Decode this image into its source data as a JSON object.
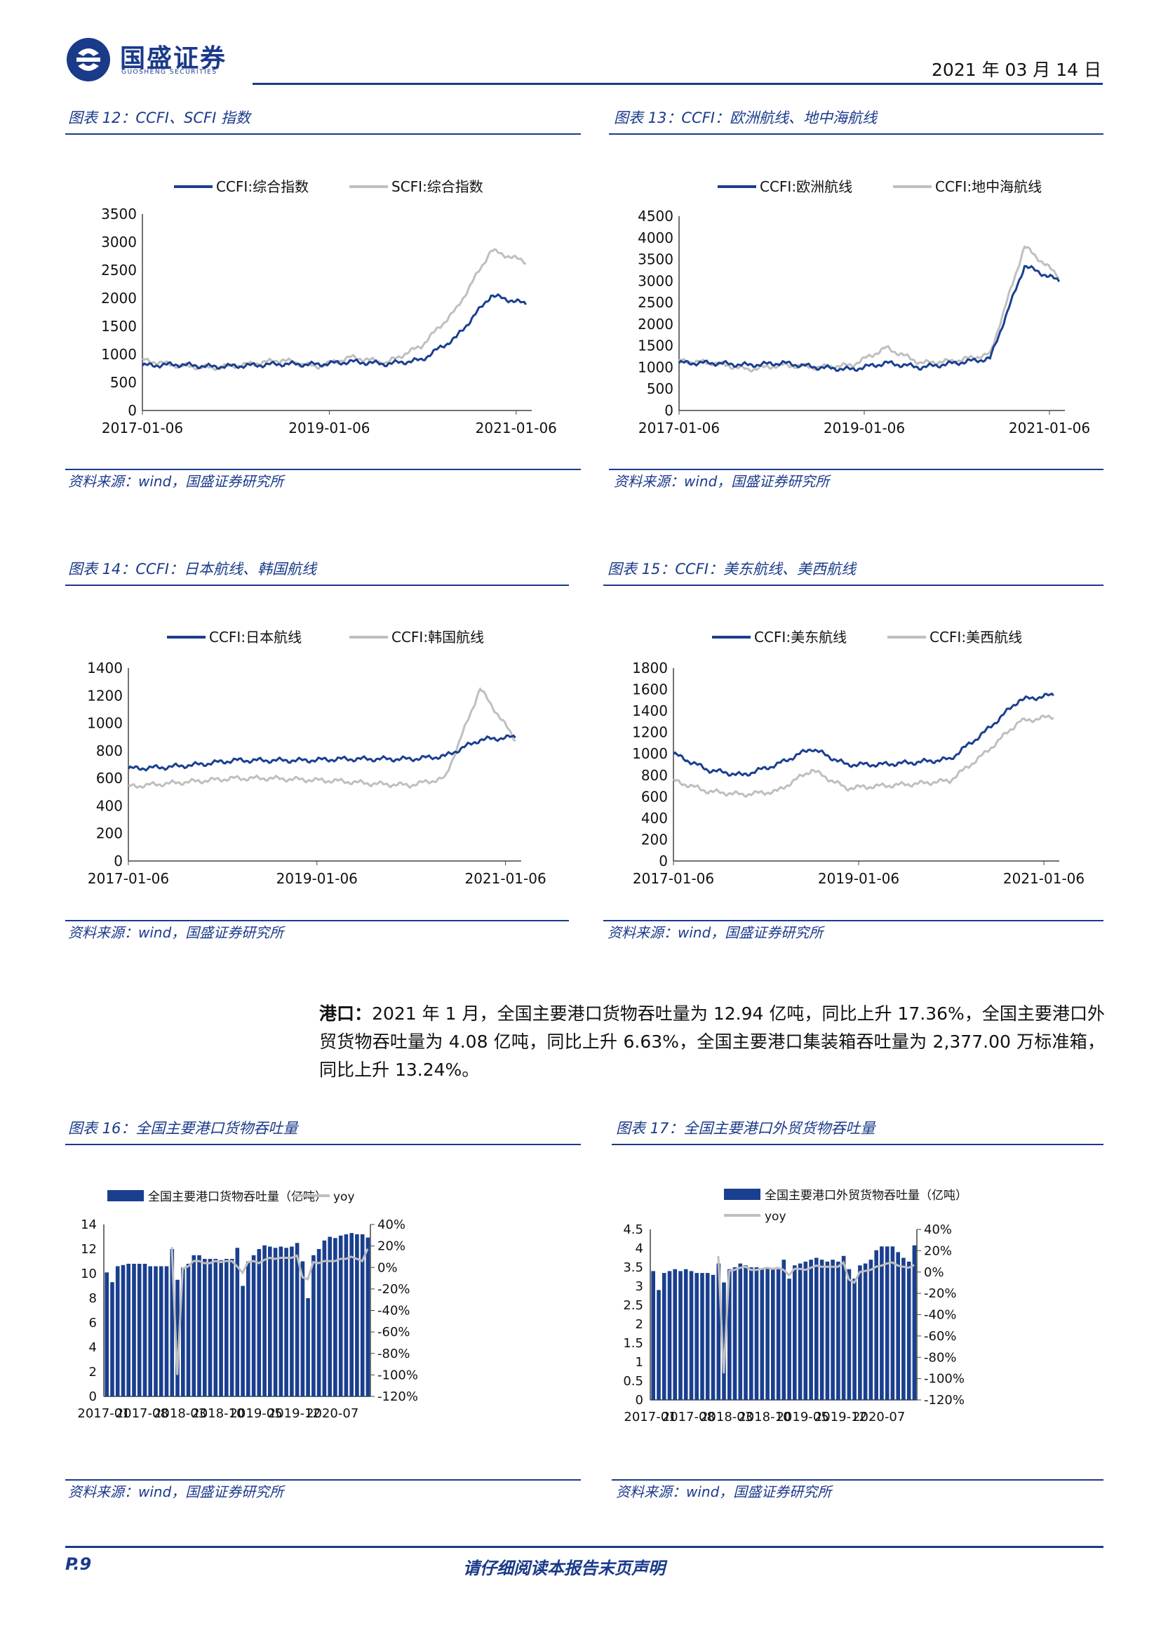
{
  "header": {
    "logo_cn": "国盛证券",
    "logo_en": "GUOSHENG SECURITIES",
    "date": "2021 年 03 月 14 日"
  },
  "figures": [
    {
      "title": "图表 12：CCFI、SCFI 指数",
      "source": "资料来源：wind，国盛证券研究所",
      "legend": [
        "CCFI:综合指数",
        "SCFI:综合指数"
      ],
      "colors": [
        "#1a3f8f",
        "#bfbfbf"
      ],
      "yticks": [
        "3500",
        "3000",
        "2500",
        "2000",
        "1500",
        "1000",
        "500",
        "0"
      ],
      "ymax": 3500,
      "xticks": [
        "2017-01-06",
        "2019-01-06",
        "2021-01-06"
      ]
    },
    {
      "title": "图表 13：CCFI：欧洲航线、地中海航线",
      "source": "资料来源：wind，国盛证券研究所",
      "legend": [
        "CCFI:欧洲航线",
        "CCFI:地中海航线"
      ],
      "colors": [
        "#1a3f8f",
        "#bfbfbf"
      ],
      "yticks": [
        "4500",
        "4000",
        "3500",
        "3000",
        "2500",
        "2000",
        "1500",
        "1000",
        "500",
        "0"
      ],
      "ymax": 4500,
      "xticks": [
        "2017-01-06",
        "2019-01-06",
        "2021-01-06"
      ]
    },
    {
      "title": "图表 14：CCFI：日本航线、韩国航线",
      "source": "资料来源：wind，国盛证券研究所",
      "legend": [
        "CCFI:日本航线",
        "CCFI:韩国航线"
      ],
      "colors": [
        "#1a3f8f",
        "#bfbfbf"
      ],
      "yticks": [
        "1400",
        "1200",
        "1000",
        "800",
        "600",
        "400",
        "200",
        "0"
      ],
      "ymax": 1400,
      "xticks": [
        "2017-01-06",
        "2019-01-06",
        "2021-01-06"
      ]
    },
    {
      "title": "图表 15：CCFI：美东航线、美西航线",
      "source": "资料来源：wind，国盛证券研究所",
      "legend": [
        "CCFI:美东航线",
        "CCFI:美西航线"
      ],
      "colors": [
        "#1a3f8f",
        "#bfbfbf"
      ],
      "yticks": [
        "1800",
        "1600",
        "1400",
        "1200",
        "1000",
        "800",
        "600",
        "400",
        "200",
        "0"
      ],
      "ymax": 1800,
      "xticks": [
        "2017-01-06",
        "2019-01-06",
        "2021-01-06"
      ]
    },
    {
      "title": "图表 16：全国主要港口货物吞吐量",
      "source": "资料来源：wind，国盛证券研究所",
      "legend": [
        "全国主要港口货物吞吐量（亿吨）",
        "yoy"
      ],
      "colors": [
        "#1a3f8f",
        "#bfbfbf"
      ],
      "yticks": [
        "14",
        "12",
        "10",
        "8",
        "6",
        "4",
        "2",
        "0"
      ],
      "ymax": 14,
      "y2ticks": [
        "40%",
        "20%",
        "0%",
        "-20%",
        "-40%",
        "-60%",
        "-80%",
        "-100%",
        "-120%"
      ],
      "xticks": [
        "2017-01",
        "2017-08",
        "2018-03",
        "2018-10",
        "2019-05",
        "2019-12",
        "2020-07"
      ]
    },
    {
      "title": "图表 17：全国主要港口外贸货物吞吐量",
      "source": "资料来源：wind，国盛证券研究所",
      "legend": [
        "全国主要港口外贸货物吞吐量（亿吨）",
        "yoy"
      ],
      "colors": [
        "#1a3f8f",
        "#bfbfbf"
      ],
      "yticks": [
        "4.5",
        "4",
        "3.5",
        "3",
        "2.5",
        "2",
        "1.5",
        "1",
        "0.5",
        "0"
      ],
      "ymax": 4.5,
      "y2ticks": [
        "40%",
        "20%",
        "0%",
        "-20%",
        "-40%",
        "-60%",
        "-80%",
        "-100%",
        "-120%"
      ],
      "xticks": [
        "2017-01",
        "2017-08",
        "2018-03",
        "2018-10",
        "2019-05",
        "2019-12",
        "2020-07"
      ]
    }
  ],
  "paragraph": {
    "lead": "港口：",
    "text": "2021 年 1 月，全国主要港口货物吞吐量为 12.94 亿吨，同比上升 17.36%，全国主要港口外贸货物吞吐量为 4.08 亿吨，同比上升 6.63%，全国主要港口集装箱吞吐量为 2,377.00 万标准箱，同比上升 13.24%。"
  },
  "footer": {
    "page": "P.9",
    "disclaimer": "请仔细阅读本报告末页声明"
  },
  "chart_data": [
    {
      "type": "line",
      "title": "图表 12：CCFI、SCFI 指数",
      "x": [
        "2017-01",
        "2017-07",
        "2018-01",
        "2018-07",
        "2019-01",
        "2019-07",
        "2020-01",
        "2020-04",
        "2020-07",
        "2020-10",
        "2021-01",
        "2021-03"
      ],
      "series": [
        {
          "name": "CCFI:综合指数",
          "values": [
            800,
            820,
            780,
            800,
            830,
            820,
            870,
            830,
            900,
            1300,
            2050,
            1900
          ]
        },
        {
          "name": "SCFI:综合指数",
          "values": [
            900,
            800,
            760,
            820,
            900,
            780,
            950,
            850,
            1150,
            1800,
            2850,
            2650
          ]
        }
      ],
      "ylim": [
        0,
        3500
      ]
    },
    {
      "type": "line",
      "title": "图表 13：CCFI：欧洲航线、地中海航线",
      "x": [
        "2017-01",
        "2017-07",
        "2018-01",
        "2018-07",
        "2019-01",
        "2019-07",
        "2020-01",
        "2020-04",
        "2020-07",
        "2020-10",
        "2021-01",
        "2021-03"
      ],
      "series": [
        {
          "name": "CCFI:欧洲航线",
          "values": [
            1100,
            1100,
            1050,
            1100,
            1000,
            950,
            1100,
            1000,
            1100,
            1200,
            3350,
            3000
          ]
        },
        {
          "name": "CCFI:地中海航线",
          "values": [
            1150,
            1100,
            950,
            1050,
            1000,
            1050,
            1450,
            1100,
            1150,
            1300,
            3800,
            3100
          ]
        }
      ],
      "ylim": [
        0,
        4500
      ]
    },
    {
      "type": "line",
      "title": "图表 14：CCFI：日本航线、韩国航线",
      "x": [
        "2017-01",
        "2017-07",
        "2018-01",
        "2018-07",
        "2019-01",
        "2019-07",
        "2020-01",
        "2020-04",
        "2020-07",
        "2020-10",
        "2021-01",
        "2021-02"
      ],
      "series": [
        {
          "name": "CCFI:日本航线",
          "values": [
            670,
            680,
            700,
            730,
            730,
            730,
            740,
            740,
            740,
            760,
            880,
            900
          ]
        },
        {
          "name": "CCFI:韩国航线",
          "values": [
            540,
            560,
            580,
            600,
            600,
            590,
            580,
            560,
            550,
            600,
            1250,
            880
          ]
        }
      ],
      "ylim": [
        0,
        1400
      ]
    },
    {
      "type": "line",
      "title": "图表 15：CCFI：美东航线、美西航线",
      "x": [
        "2017-01",
        "2017-07",
        "2018-01",
        "2018-07",
        "2019-01",
        "2019-07",
        "2020-01",
        "2020-04",
        "2020-07",
        "2020-10",
        "2021-01",
        "2021-02"
      ],
      "series": [
        {
          "name": "CCFI:美东航线",
          "values": [
            1000,
            850,
            800,
            900,
            1050,
            900,
            900,
            920,
            950,
            1200,
            1500,
            1550
          ]
        },
        {
          "name": "CCFI:美西航线",
          "values": [
            750,
            650,
            620,
            650,
            850,
            680,
            700,
            720,
            750,
            1000,
            1300,
            1350
          ]
        }
      ],
      "ylim": [
        0,
        1800
      ]
    },
    {
      "type": "bar",
      "title": "图表 16：全国主要港口货物吞吐量",
      "categories": [
        "2017-01",
        "2017-02",
        "2017-03",
        "2017-04",
        "2017-05",
        "2017-06",
        "2017-07",
        "2017-08",
        "2017-09",
        "2017-10",
        "2017-11",
        "2017-12",
        "2018-01",
        "2018-02",
        "2018-03",
        "2018-04",
        "2018-05",
        "2018-06",
        "2018-07",
        "2018-08",
        "2018-09",
        "2018-10",
        "2018-11",
        "2018-12",
        "2019-01",
        "2019-02",
        "2019-03",
        "2019-04",
        "2019-05",
        "2019-06",
        "2019-07",
        "2019-08",
        "2019-09",
        "2019-10",
        "2019-11",
        "2019-12",
        "2020-01",
        "2020-02",
        "2020-03",
        "2020-04",
        "2020-05",
        "2020-06",
        "2020-07",
        "2020-08",
        "2020-09",
        "2020-10",
        "2020-11",
        "2020-12",
        "2021-01"
      ],
      "series": [
        {
          "name": "全国主要港口货物吞吐量（亿吨）",
          "values": [
            10.1,
            9.3,
            10.6,
            10.7,
            10.8,
            10.8,
            10.8,
            10.8,
            10.6,
            10.6,
            10.6,
            10.6,
            12.0,
            9.5,
            10.5,
            10.8,
            11.5,
            11.5,
            11.2,
            11.2,
            11.2,
            11.1,
            11.2,
            11.2,
            12.1,
            9.0,
            11.0,
            11.5,
            12.0,
            12.3,
            12.2,
            12.1,
            12.2,
            12.1,
            12.2,
            12.5,
            11.0,
            8.0,
            11.5,
            12.0,
            12.7,
            13.0,
            12.9,
            13.1,
            13.2,
            13.3,
            13.2,
            13.2,
            12.94
          ]
        },
        {
          "name": "yoy",
          "values": [
            null,
            null,
            null,
            null,
            null,
            null,
            null,
            null,
            null,
            null,
            null,
            null,
            19,
            -100,
            -1,
            1,
            6,
            6,
            4,
            4,
            6,
            5,
            6,
            6,
            1,
            -5,
            5,
            6,
            4,
            7,
            9,
            8,
            9,
            9,
            9,
            11,
            -9,
            -11,
            5,
            4,
            6,
            6,
            6,
            8,
            8,
            10,
            8,
            6,
            17.36
          ]
        }
      ],
      "ylim": [
        0,
        14
      ],
      "y2lim": [
        -120,
        40
      ]
    },
    {
      "type": "bar",
      "title": "图表 17：全国主要港口外贸货物吞吐量",
      "categories": [
        "2017-01",
        "2017-02",
        "2017-03",
        "2017-04",
        "2017-05",
        "2017-06",
        "2017-07",
        "2017-08",
        "2017-09",
        "2017-10",
        "2017-11",
        "2017-12",
        "2018-01",
        "2018-02",
        "2018-03",
        "2018-04",
        "2018-05",
        "2018-06",
        "2018-07",
        "2018-08",
        "2018-09",
        "2018-10",
        "2018-11",
        "2018-12",
        "2019-01",
        "2019-02",
        "2019-03",
        "2019-04",
        "2019-05",
        "2019-06",
        "2019-07",
        "2019-08",
        "2019-09",
        "2019-10",
        "2019-11",
        "2019-12",
        "2020-01",
        "2020-02",
        "2020-03",
        "2020-04",
        "2020-05",
        "2020-06",
        "2020-07",
        "2020-08",
        "2020-09",
        "2020-10",
        "2020-11",
        "2020-12",
        "2021-01"
      ],
      "series": [
        {
          "name": "全国主要港口外贸货物吞吐量（亿吨）",
          "values": [
            3.4,
            2.9,
            3.35,
            3.4,
            3.45,
            3.4,
            3.45,
            3.4,
            3.35,
            3.35,
            3.35,
            3.3,
            3.6,
            3.1,
            3.45,
            3.5,
            3.6,
            3.55,
            3.5,
            3.5,
            3.45,
            3.5,
            3.45,
            3.45,
            3.7,
            3.2,
            3.55,
            3.6,
            3.65,
            3.7,
            3.75,
            3.7,
            3.65,
            3.7,
            3.65,
            3.8,
            3.45,
            3.2,
            3.55,
            3.6,
            3.7,
            3.95,
            4.05,
            4.05,
            4.05,
            3.9,
            3.75,
            3.65,
            4.08
          ]
        },
        {
          "name": "yoy",
          "values": [
            null,
            null,
            null,
            null,
            null,
            null,
            null,
            null,
            null,
            null,
            null,
            null,
            15,
            -95,
            1,
            2,
            4,
            5,
            2,
            2,
            3,
            4,
            3,
            4,
            2,
            -3,
            3,
            3,
            2,
            4,
            6,
            5,
            5,
            5,
            5,
            9,
            -7,
            -10,
            0,
            1,
            2,
            5,
            6,
            8,
            9,
            6,
            5,
            4,
            6.63
          ]
        }
      ],
      "ylim": [
        0,
        4.5
      ],
      "y2lim": [
        -120,
        40
      ]
    }
  ]
}
